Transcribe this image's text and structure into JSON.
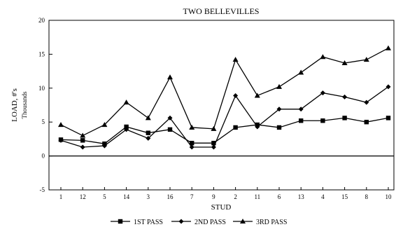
{
  "chart_data": {
    "type": "line",
    "title": "TWO BELLEVILLES",
    "xlabel": "STUD",
    "ylabel": "LOAD, #'s",
    "ylabel_sub": "Thousands",
    "categories": [
      "1",
      "12",
      "5",
      "14",
      "3",
      "16",
      "7",
      "9",
      "2",
      "11",
      "6",
      "13",
      "4",
      "15",
      "8",
      "10"
    ],
    "ylim": [
      -5,
      20
    ],
    "yticks": [
      -5,
      0,
      5,
      10,
      15,
      20
    ],
    "grid": false,
    "legend_position": "bottom",
    "series": [
      {
        "name": "1ST PASS",
        "marker": "square",
        "values": [
          2.4,
          2.3,
          1.8,
          4.3,
          3.4,
          3.9,
          1.9,
          1.9,
          4.2,
          4.6,
          4.2,
          5.2,
          5.2,
          5.6,
          5.0,
          5.6
        ]
      },
      {
        "name": "2ND PASS",
        "marker": "diamond",
        "values": [
          2.3,
          1.3,
          1.5,
          3.9,
          2.6,
          5.6,
          1.3,
          1.3,
          8.9,
          4.3,
          6.9,
          6.9,
          9.3,
          8.7,
          7.9,
          10.2
        ]
      },
      {
        "name": "3RD PASS",
        "marker": "triangle",
        "values": [
          4.6,
          3.0,
          4.6,
          7.9,
          5.6,
          11.6,
          4.2,
          4.0,
          14.2,
          8.9,
          10.2,
          12.3,
          14.6,
          13.7,
          14.2,
          15.9
        ]
      }
    ]
  }
}
